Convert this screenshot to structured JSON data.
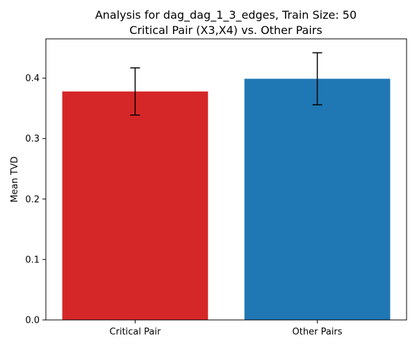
{
  "chart_data": {
    "type": "bar",
    "title_line1": "Analysis for dag_dag_1_3_edges, Train Size: 50",
    "title_line2": "Critical Pair (X3,X4) vs. Other Pairs",
    "categories": [
      "Critical Pair",
      "Other Pairs"
    ],
    "values": [
      0.378,
      0.399
    ],
    "errors": [
      0.039,
      0.043
    ],
    "colors": [
      "#d62728",
      "#1f77b4"
    ],
    "xlabel": "",
    "ylabel": "Mean TVD",
    "ylim": [
      0,
      0.465
    ],
    "yticks": [
      0.0,
      0.1,
      0.2,
      0.3,
      0.4
    ],
    "ytick_labels": [
      "0.0",
      "0.1",
      "0.2",
      "0.3",
      "0.4"
    ],
    "grid": false
  }
}
